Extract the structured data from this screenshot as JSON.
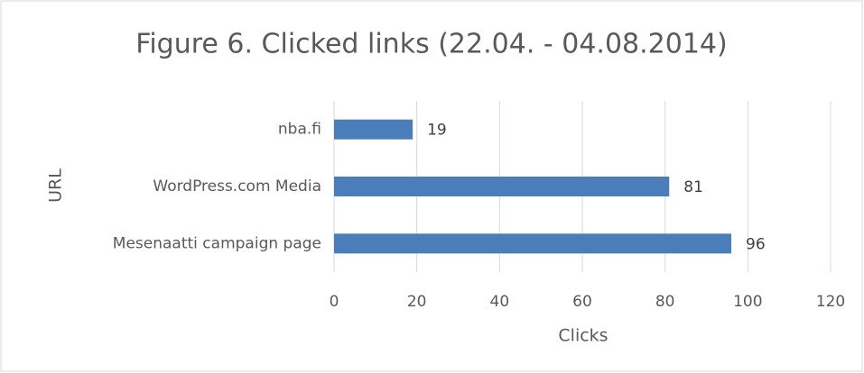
{
  "chart_data": {
    "type": "bar",
    "orientation": "horizontal",
    "title": "Figure 6. Clicked links (22.04. - 04.08.2014)",
    "categories": [
      "nba.fi",
      "WordPress.com Media",
      "Mesenaatti campaign page"
    ],
    "values": [
      19,
      81,
      96
    ],
    "color": "#4a7ebb",
    "xlabel": "Clicks",
    "ylabel": "URL",
    "xlim": [
      0,
      120
    ],
    "xticks": [
      0,
      20,
      40,
      60,
      80,
      100,
      120
    ],
    "grid": true
  }
}
